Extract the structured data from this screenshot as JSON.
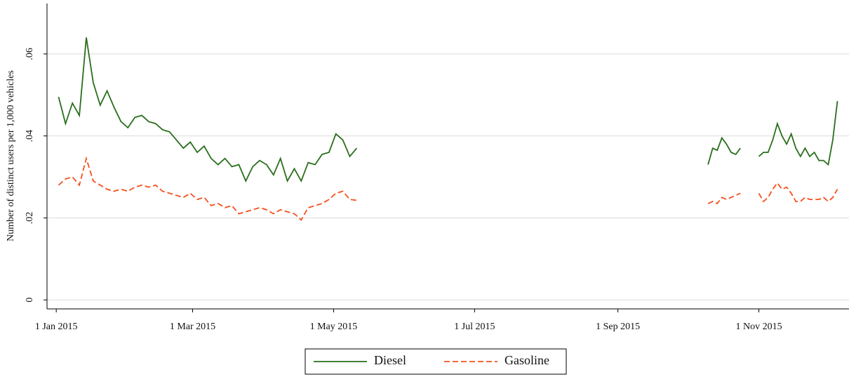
{
  "chart_data": {
    "type": "line",
    "ylabel": "Number of distinct users per 1,000 vehicles",
    "x": [
      "2015-01-02",
      "2015-01-05",
      "2015-01-08",
      "2015-01-11",
      "2015-01-14",
      "2015-01-17",
      "2015-01-20",
      "2015-01-23",
      "2015-01-26",
      "2015-01-29",
      "2015-02-01",
      "2015-02-04",
      "2015-02-07",
      "2015-02-10",
      "2015-02-13",
      "2015-02-16",
      "2015-02-19",
      "2015-02-22",
      "2015-02-25",
      "2015-02-28",
      "2015-03-03",
      "2015-03-06",
      "2015-03-09",
      "2015-03-12",
      "2015-03-15",
      "2015-03-18",
      "2015-03-21",
      "2015-03-24",
      "2015-03-27",
      "2015-03-30",
      "2015-04-02",
      "2015-04-05",
      "2015-04-08",
      "2015-04-11",
      "2015-04-14",
      "2015-04-17",
      "2015-04-20",
      "2015-04-23",
      "2015-04-26",
      "2015-04-29",
      "2015-05-02",
      "2015-05-05",
      "2015-05-08",
      "2015-05-11",
      "2015-07-01",
      "2015-10-10",
      "2015-10-12",
      "2015-10-14",
      "2015-10-16",
      "2015-10-18",
      "2015-10-20",
      "2015-10-22",
      "2015-10-24",
      "2015-10-28",
      "2015-11-01",
      "2015-11-03",
      "2015-11-05",
      "2015-11-07",
      "2015-11-09",
      "2015-11-11",
      "2015-11-13",
      "2015-11-15",
      "2015-11-17",
      "2015-11-19",
      "2015-11-21",
      "2015-11-23",
      "2015-11-25",
      "2015-11-27",
      "2015-11-29",
      "2015-12-01",
      "2015-12-03",
      "2015-12-05"
    ],
    "series": [
      {
        "name": "Diesel",
        "color": "#2a6e1c",
        "dash": "solid",
        "values": [
          0.0495,
          0.043,
          0.048,
          0.045,
          0.064,
          0.053,
          0.0475,
          0.051,
          0.047,
          0.0435,
          0.042,
          0.0445,
          0.045,
          0.0435,
          0.043,
          0.0415,
          0.041,
          0.039,
          0.037,
          0.0385,
          0.036,
          0.0375,
          0.0345,
          0.033,
          0.0345,
          0.0325,
          0.033,
          0.029,
          0.0325,
          0.034,
          0.033,
          0.0305,
          0.0345,
          0.029,
          0.032,
          0.029,
          0.0335,
          0.033,
          0.0355,
          0.036,
          0.0405,
          0.039,
          0.035,
          0.037,
          null,
          0.033,
          0.037,
          0.0365,
          0.0395,
          0.038,
          0.036,
          0.0355,
          0.037,
          null,
          0.035,
          0.036,
          0.036,
          0.039,
          0.043,
          0.04,
          0.038,
          0.0405,
          0.037,
          0.035,
          0.037,
          0.035,
          0.036,
          0.034,
          0.034,
          0.033,
          0.039,
          0.0485
        ]
      },
      {
        "name": "Gasoline",
        "color": "#f4511e",
        "dash": "dashed",
        "values": [
          0.028,
          0.0295,
          0.03,
          0.028,
          0.0345,
          0.029,
          0.028,
          0.027,
          0.0265,
          0.027,
          0.0265,
          0.0275,
          0.028,
          0.0275,
          0.028,
          0.0265,
          0.026,
          0.0255,
          0.025,
          0.026,
          0.0245,
          0.025,
          0.023,
          0.0235,
          0.0225,
          0.023,
          0.021,
          0.0215,
          0.022,
          0.0225,
          0.022,
          0.021,
          0.022,
          0.0215,
          0.021,
          0.0195,
          0.0225,
          0.023,
          0.0235,
          0.0245,
          0.026,
          0.0265,
          0.0245,
          0.0243,
          null,
          0.0235,
          0.024,
          0.0235,
          0.025,
          0.0245,
          0.025,
          0.0255,
          0.026,
          null,
          0.026,
          0.024,
          0.025,
          0.027,
          0.0285,
          0.027,
          0.0275,
          0.026,
          0.024,
          0.024,
          0.025,
          0.0245,
          0.0245,
          0.0245,
          0.025,
          0.024,
          0.025,
          0.027
        ]
      }
    ],
    "xlim": [
      "2014-12-28",
      "2015-12-10"
    ],
    "xticks": [
      {
        "value": "2015-01-01",
        "label": "1 Jan 2015"
      },
      {
        "value": "2015-03-01",
        "label": "1 Mar 2015"
      },
      {
        "value": "2015-05-01",
        "label": "1 May 2015"
      },
      {
        "value": "2015-07-01",
        "label": "1 Jul 2015"
      },
      {
        "value": "2015-09-01",
        "label": "1 Sep 2015"
      },
      {
        "value": "2015-11-01",
        "label": "1 Nov 2015"
      }
    ],
    "ylim": [
      -0.0022,
      0.0723
    ],
    "yticks": [
      0,
      {
        "value": 0.02,
        "label": ".02"
      },
      {
        "value": 0.04,
        "label": ".04"
      },
      {
        "value": 0.06,
        "label": ".06"
      }
    ],
    "grid": true,
    "legend": "bottom"
  }
}
